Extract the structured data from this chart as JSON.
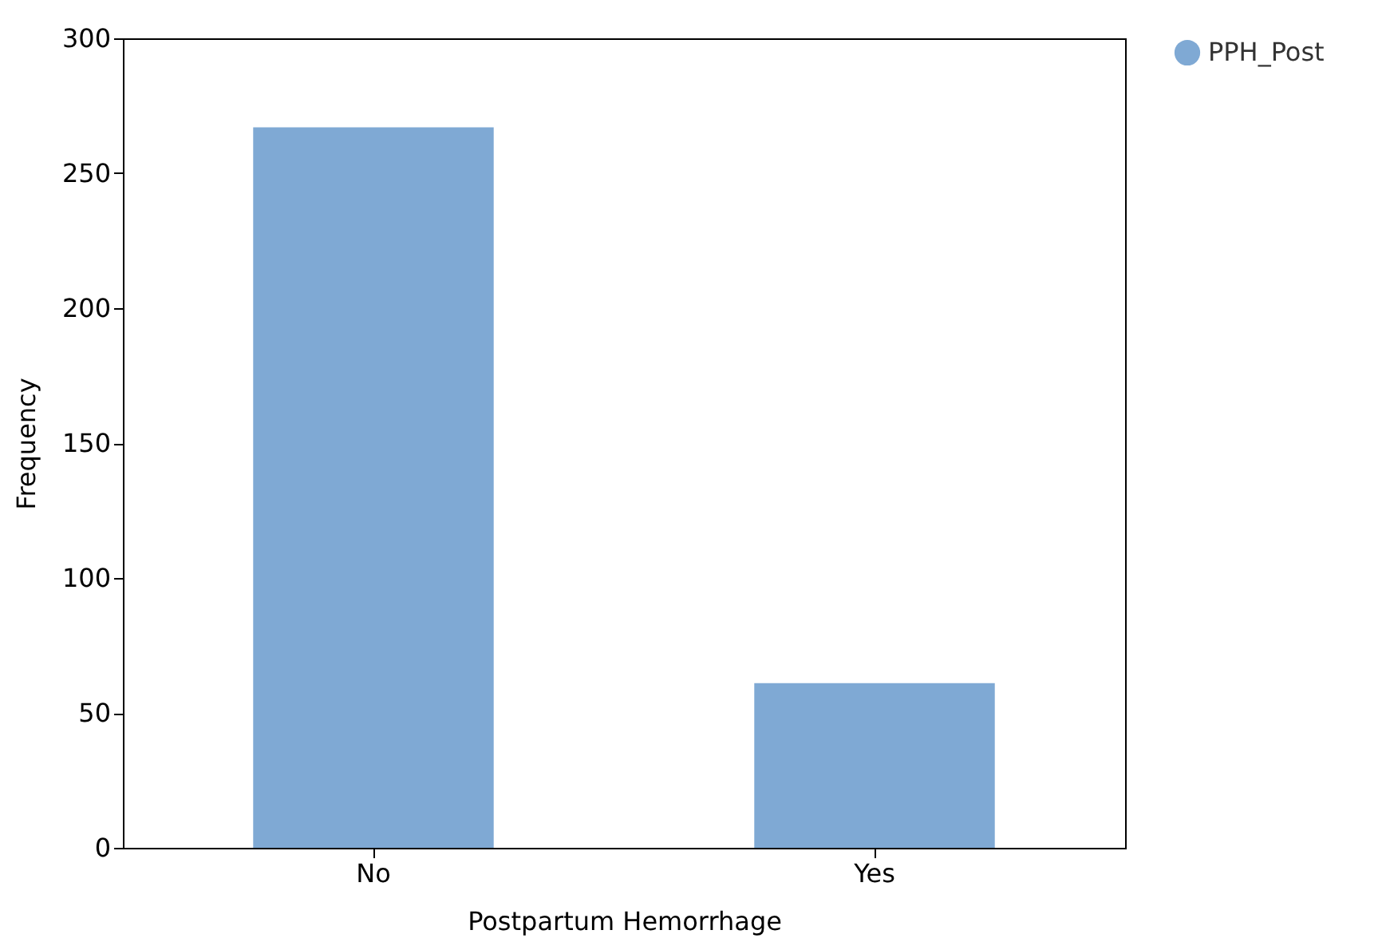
{
  "chart_data": {
    "type": "bar",
    "xlabel": "Postpartum Hemorrhage",
    "ylabel": "Frequency",
    "categories": [
      "No",
      "Yes"
    ],
    "series": [
      {
        "name": "PPH_Post",
        "color": "#7fa9d4",
        "values": [
          267,
          61
        ]
      }
    ],
    "ylim": [
      0,
      300
    ],
    "yticks": [
      0,
      50,
      100,
      150,
      200,
      250,
      300
    ],
    "grid": false,
    "legend": "right"
  }
}
